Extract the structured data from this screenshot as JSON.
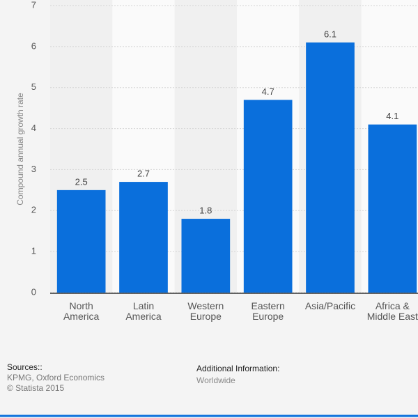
{
  "chart_data": {
    "type": "bar",
    "y_label": "Compound annual growth rate",
    "categories": [
      "North America",
      "Latin America",
      "Western Europe",
      "Eastern Europe",
      "Asia/Pacific",
      "Africa & Middle East"
    ],
    "values": [
      2.5,
      2.7,
      1.8,
      4.7,
      6.1,
      4.1
    ],
    "color": "#0a6fdc",
    "ylim": [
      0,
      7
    ],
    "yticks": [
      0,
      1,
      2,
      3,
      4,
      5,
      6,
      7
    ],
    "grid": true
  },
  "footer": {
    "sources_title": "Sources::",
    "sources": [
      "KPMG, Oxford Economics",
      "© Statista 2015"
    ],
    "info_title": "Additional Information:",
    "info": "Worldwide"
  }
}
